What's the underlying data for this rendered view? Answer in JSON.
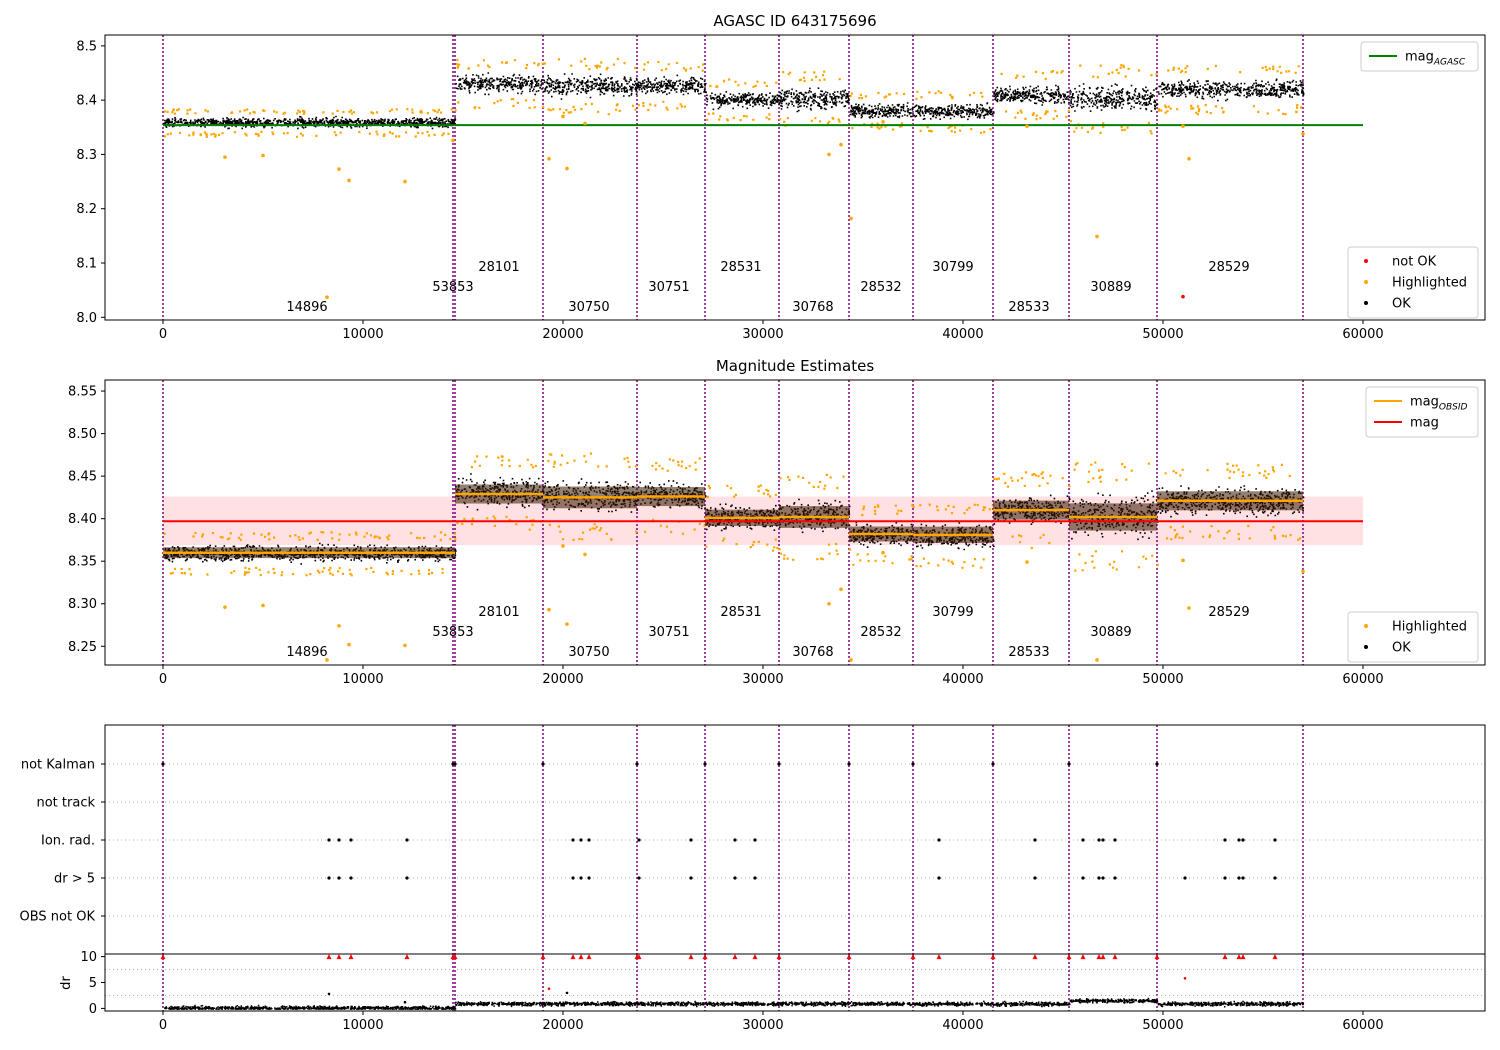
{
  "chart_data": [
    {
      "type": "scatter",
      "title": "AGASC ID 643175696",
      "xlim": [
        -2900,
        66100
      ],
      "ylim": [
        7.995,
        8.52
      ],
      "xticks": [
        0,
        10000,
        20000,
        30000,
        40000,
        50000,
        60000
      ],
      "xtick_labels": [
        "0",
        "10000",
        "20000",
        "30000",
        "40000",
        "50000",
        "60000"
      ],
      "yticks": [
        8.0,
        8.1,
        8.2,
        8.3,
        8.4,
        8.5
      ],
      "ytick_labels": [
        "8.0",
        "8.1",
        "8.2",
        "8.3",
        "8.4",
        "8.5"
      ],
      "legend_position": "top-right, bottom-right",
      "legend_top": [
        {
          "text": "mag",
          "sub": "AGASC",
          "color": "#008000",
          "kind": "line"
        }
      ],
      "legend_bottom": [
        {
          "text": "not OK",
          "color": "#ff0000",
          "kind": "dot"
        },
        {
          "text": "Highlighted",
          "color": "#ffa500",
          "kind": "dot"
        },
        {
          "text": "OK",
          "color": "#000000",
          "kind": "dot"
        }
      ],
      "mag_agasc": 8.354,
      "mag_agasc_x": [
        0,
        60000
      ],
      "highlighted_points": [
        [
          3100,
          8.295
        ],
        [
          5000,
          8.298
        ],
        [
          8200,
          8.037
        ],
        [
          8800,
          8.273
        ],
        [
          9300,
          8.252
        ],
        [
          12100,
          8.25
        ],
        [
          14500,
          8.326
        ],
        [
          19300,
          8.292
        ],
        [
          20200,
          8.274
        ],
        [
          20000,
          8.37
        ],
        [
          21100,
          8.357
        ],
        [
          33300,
          8.3
        ],
        [
          34400,
          8.182
        ],
        [
          33900,
          8.318
        ],
        [
          36000,
          8.36
        ],
        [
          43200,
          8.352
        ],
        [
          46700,
          8.149
        ],
        [
          51000,
          8.352
        ],
        [
          51300,
          8.292
        ],
        [
          57000,
          8.338
        ]
      ],
      "not_ok_points": [
        [
          51000,
          8.038
        ]
      ],
      "obsid_labels": [
        {
          "text": "14896",
          "x": 7200,
          "level": 3
        },
        {
          "text": "53853",
          "x": 14500,
          "level": 2
        },
        {
          "text": "28101",
          "x": 16800,
          "level": 1
        },
        {
          "text": "30750",
          "x": 21300,
          "level": 3
        },
        {
          "text": "30751",
          "x": 25300,
          "level": 2
        },
        {
          "text": "28531",
          "x": 28900,
          "level": 1
        },
        {
          "text": "30768",
          "x": 32500,
          "level": 3
        },
        {
          "text": "28532",
          "x": 35900,
          "level": 2
        },
        {
          "text": "30799",
          "x": 39500,
          "level": 1
        },
        {
          "text": "28533",
          "x": 43300,
          "level": 3
        },
        {
          "text": "30889",
          "x": 47400,
          "level": 2
        },
        {
          "text": "28529",
          "x": 53300,
          "level": 1
        }
      ]
    },
    {
      "type": "scatter",
      "title": "Magnitude Estimates",
      "xlim": [
        -2900,
        66100
      ],
      "ylim": [
        8.228,
        8.563
      ],
      "xticks": [
        0,
        10000,
        20000,
        30000,
        40000,
        50000,
        60000
      ],
      "xtick_labels": [
        "0",
        "10000",
        "20000",
        "30000",
        "40000",
        "50000",
        "60000"
      ],
      "yticks": [
        8.25,
        8.3,
        8.35,
        8.4,
        8.45,
        8.5,
        8.55
      ],
      "ytick_labels": [
        "8.25",
        "8.30",
        "8.35",
        "8.40",
        "8.45",
        "8.50",
        "8.55"
      ],
      "legend_top": [
        {
          "text": "mag",
          "sub": "OBSID",
          "color": "#ffa500",
          "kind": "line"
        },
        {
          "text": "mag",
          "sub": "",
          "color": "#ff0000",
          "kind": "line"
        }
      ],
      "legend_bottom": [
        {
          "text": "Highlighted",
          "color": "#ffa500",
          "kind": "dot"
        },
        {
          "text": "OK",
          "color": "#000000",
          "kind": "dot"
        }
      ],
      "mag": 8.397,
      "mag_x": [
        0,
        60000
      ],
      "mag_band": [
        8.369,
        8.426
      ],
      "mag_obsid": [
        8.36,
        8.429,
        8.425,
        8.426,
        8.401,
        8.402,
        8.382,
        8.381,
        8.41,
        8.402,
        8.421
      ],
      "highlighted_points": [
        [
          3100,
          8.296
        ],
        [
          5000,
          8.298
        ],
        [
          8800,
          8.274
        ],
        [
          9300,
          8.252
        ],
        [
          12100,
          8.251
        ],
        [
          19300,
          8.293
        ],
        [
          20200,
          8.276
        ],
        [
          21100,
          8.358
        ],
        [
          33300,
          8.3
        ],
        [
          33900,
          8.317
        ],
        [
          34400,
          8.234
        ],
        [
          36000,
          8.36
        ],
        [
          43200,
          8.349
        ],
        [
          46700,
          8.234
        ],
        [
          51000,
          8.351
        ],
        [
          51300,
          8.295
        ],
        [
          57000,
          8.338
        ],
        [
          20000,
          8.368
        ],
        [
          8200,
          8.234
        ]
      ],
      "obsid_labels": [
        {
          "text": "14896",
          "x": 7200,
          "level": 3
        },
        {
          "text": "53853",
          "x": 14500,
          "level": 2
        },
        {
          "text": "28101",
          "x": 16800,
          "level": 1
        },
        {
          "text": "30750",
          "x": 21300,
          "level": 3
        },
        {
          "text": "30751",
          "x": 25300,
          "level": 2
        },
        {
          "text": "28531",
          "x": 28900,
          "level": 1
        },
        {
          "text": "30768",
          "x": 32500,
          "level": 3
        },
        {
          "text": "28532",
          "x": 35900,
          "level": 2
        },
        {
          "text": "30799",
          "x": 39500,
          "level": 1
        },
        {
          "text": "28533",
          "x": 43300,
          "level": 3
        },
        {
          "text": "30889",
          "x": 47400,
          "level": 2
        },
        {
          "text": "28529",
          "x": 53300,
          "level": 1
        }
      ]
    },
    {
      "type": "scatter",
      "title": "",
      "xlim": [
        -2900,
        66100
      ],
      "categories": [
        "not Kalman",
        "not track",
        "Ion. rad.",
        "dr > 5",
        "OBS not OK"
      ],
      "flags": {
        "not Kalman": [
          0,
          14500,
          14600,
          19000,
          23700,
          27100,
          30800,
          34300,
          37500,
          41500,
          45300,
          49700
        ],
        "not track": [],
        "Ion. rad.": [
          8300,
          8800,
          9400,
          12200,
          20500,
          20900,
          21300,
          23800,
          26400,
          28600,
          29600,
          38800,
          43600,
          46000,
          46800,
          47000,
          47600,
          53100,
          53800,
          54000,
          55600
        ],
        "dr > 5": [
          8300,
          8800,
          9400,
          12200,
          20500,
          20900,
          21300,
          23800,
          26400,
          28600,
          29600,
          38800,
          43600,
          46000,
          46800,
          47000,
          47600,
          51100,
          53100,
          53800,
          54000,
          55600
        ],
        "OBS not OK": []
      }
    },
    {
      "type": "scatter",
      "title": "",
      "ylabel": "dr",
      "xlim": [
        -2900,
        66100
      ],
      "ylim": [
        -0.5,
        10.5
      ],
      "xticks": [
        0,
        10000,
        20000,
        30000,
        40000,
        50000,
        60000
      ],
      "xtick_labels": [
        "0",
        "10000",
        "20000",
        "30000",
        "40000",
        "50000",
        "60000"
      ],
      "yticks": [
        0,
        5,
        10
      ],
      "ytick_labels": [
        "0",
        "5",
        "10"
      ],
      "clipped_points_x": [
        0,
        8300,
        8800,
        9400,
        12200,
        14500,
        14600,
        19000,
        20500,
        20900,
        21300,
        23700,
        23800,
        26400,
        27100,
        28600,
        29600,
        30800,
        34300,
        37500,
        38800,
        41500,
        43600,
        45300,
        46000,
        46800,
        47000,
        47600,
        49700,
        53100,
        53800,
        54000,
        55600
      ],
      "outlier_points": [
        [
          8300,
          2.8
        ],
        [
          19300,
          3.8
        ],
        [
          20200,
          3.0
        ],
        [
          51100,
          5.8
        ],
        [
          12100,
          1.2
        ]
      ]
    }
  ],
  "obs_boundaries": [
    0,
    14500,
    14600,
    19000,
    23700,
    27100,
    30800,
    34300,
    37500,
    41500,
    45300,
    49700,
    57000
  ],
  "segments": [
    {
      "x0": 0,
      "x1": 14600,
      "mean": 8.36,
      "spread": 0.008
    },
    {
      "x0": 14600,
      "x1": 19000,
      "mean": 8.432,
      "spread": 0.014
    },
    {
      "x0": 19000,
      "x1": 23700,
      "mean": 8.427,
      "spread": 0.016
    },
    {
      "x0": 23700,
      "x1": 27100,
      "mean": 8.428,
      "spread": 0.014
    },
    {
      "x0": 27100,
      "x1": 30800,
      "mean": 8.402,
      "spread": 0.012
    },
    {
      "x0": 30800,
      "x1": 34300,
      "mean": 8.404,
      "spread": 0.016
    },
    {
      "x0": 34300,
      "x1": 37500,
      "mean": 8.382,
      "spread": 0.011
    },
    {
      "x0": 37500,
      "x1": 41500,
      "mean": 8.38,
      "spread": 0.012
    },
    {
      "x0": 41500,
      "x1": 45300,
      "mean": 8.411,
      "spread": 0.014
    },
    {
      "x0": 45300,
      "x1": 49700,
      "mean": 8.404,
      "spread": 0.02
    },
    {
      "x0": 49700,
      "x1": 57000,
      "mean": 8.421,
      "spread": 0.014
    }
  ],
  "colors": {
    "ok": "#000000",
    "highlighted": "#ffa500",
    "not_ok": "#ff0000",
    "boundary": "#800080",
    "agasc_line": "#008000",
    "mag_line": "#ff0000",
    "band": "#ffe0e3",
    "obsid_line": "#ffa500"
  }
}
